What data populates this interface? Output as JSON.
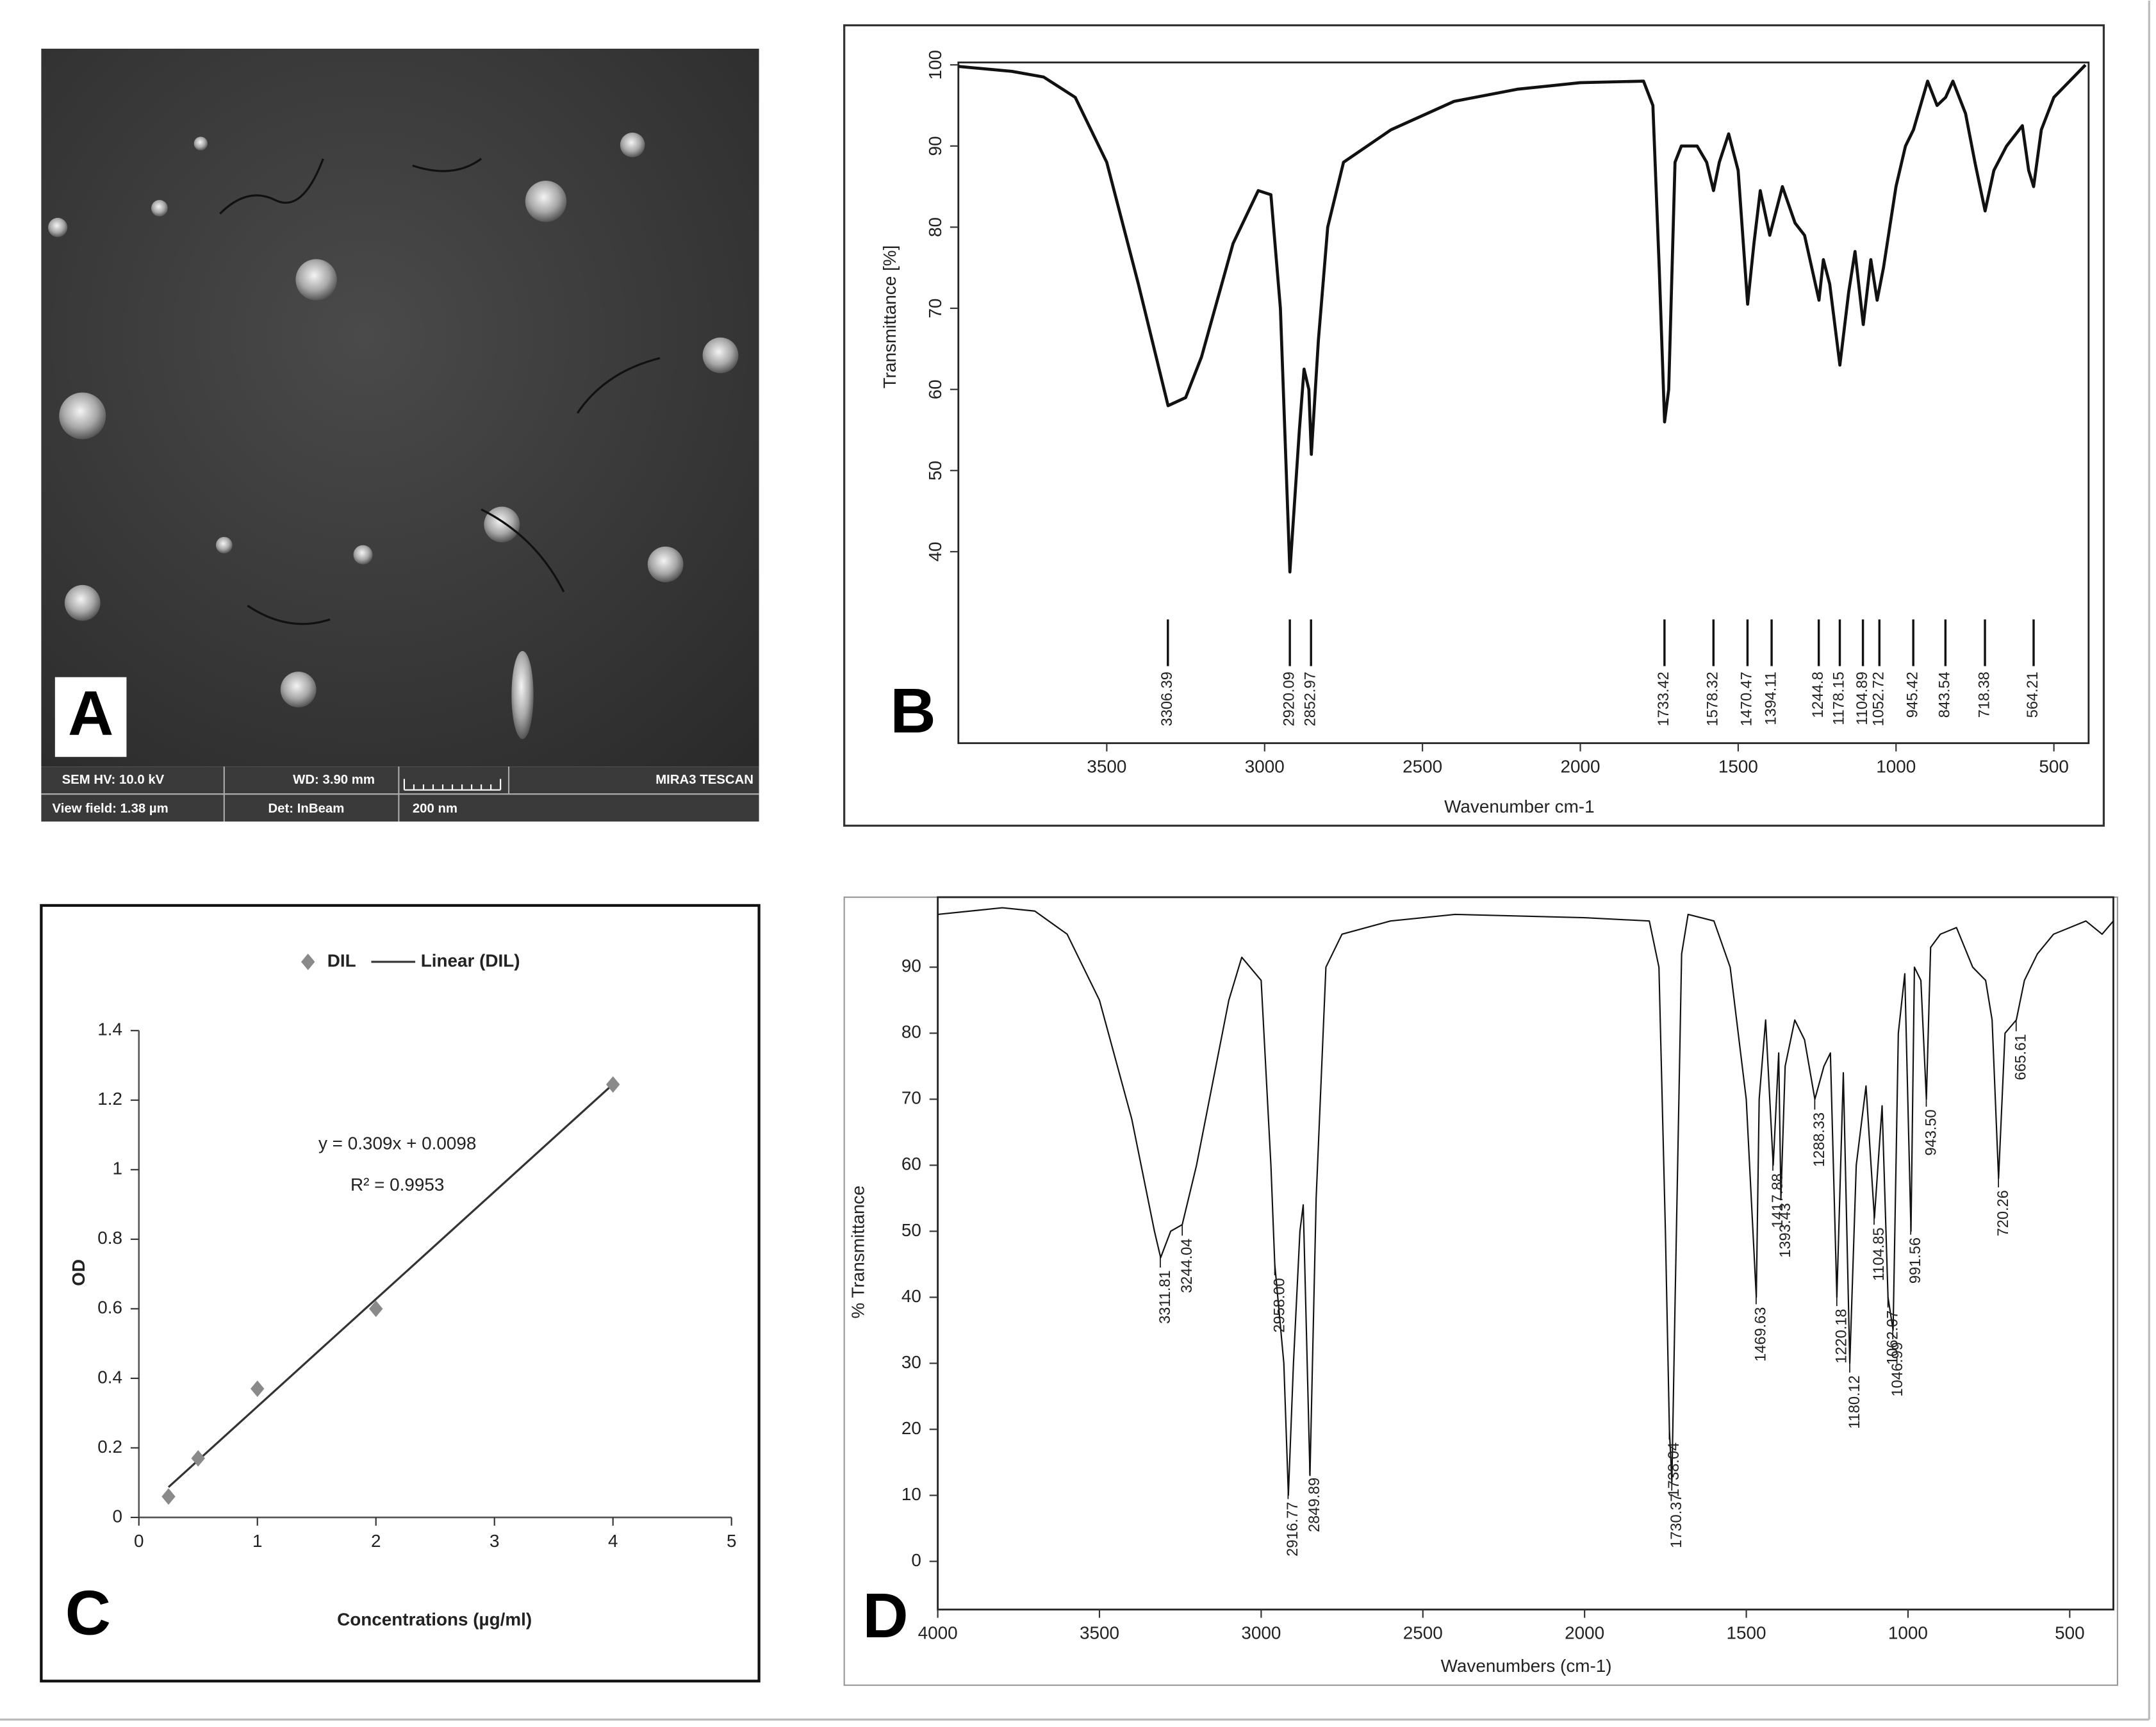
{
  "panels": [
    "A",
    "B",
    "C",
    "D"
  ],
  "sem": {
    "hv": "SEM HV: 10.0 kV",
    "wd": "WD: 3.90 mm",
    "brand": "MIRA3 TESCAN",
    "view": "View field: 1.38 µm",
    "det": "Det: InBeam",
    "scale": "200 nm"
  },
  "chart_data": [
    {
      "type": "line",
      "xlabel": "Wavenumber cm-1",
      "ylabel": "Transmittance [%]",
      "color": "#111111",
      "xlim": [
        3970,
        390
      ],
      "ylim": [
        16.4,
        100.3
      ],
      "xticks": [
        3500,
        3000,
        2500,
        2000,
        1500,
        1000,
        500
      ],
      "yticks": [
        40,
        50,
        60,
        70,
        80,
        90,
        100
      ],
      "x": [
        3970,
        3800,
        3700,
        3600,
        3500,
        3400,
        3306,
        3250,
        3200,
        3100,
        3020,
        2980,
        2950,
        2920,
        2890,
        2875,
        2860,
        2852,
        2830,
        2800,
        2750,
        2600,
        2400,
        2200,
        2000,
        1800,
        1770,
        1750,
        1733,
        1720,
        1700,
        1680,
        1630,
        1600,
        1578,
        1560,
        1530,
        1500,
        1470,
        1450,
        1430,
        1400,
        1380,
        1360,
        1320,
        1290,
        1244,
        1230,
        1210,
        1178,
        1150,
        1130,
        1104,
        1080,
        1060,
        1040,
        1000,
        970,
        945,
        900,
        870,
        843,
        820,
        780,
        750,
        718,
        690,
        650,
        600,
        580,
        564,
        540,
        500,
        450,
        400
      ],
      "values": [
        99.8,
        99.2,
        98.5,
        96,
        88,
        73,
        58,
        59,
        64,
        78,
        84.5,
        84,
        70,
        37.5,
        55,
        62.5,
        60,
        52,
        66,
        80,
        88,
        92,
        95.5,
        97,
        97.8,
        98,
        95,
        75,
        56,
        60,
        88,
        90,
        90,
        88,
        84.5,
        88,
        91.5,
        87,
        70.5,
        78,
        84.5,
        79,
        82,
        85,
        80.5,
        79,
        71,
        76,
        73,
        63,
        72,
        77,
        68,
        76,
        71,
        75,
        85,
        90,
        92,
        98,
        95,
        96,
        98,
        94,
        88,
        82,
        87,
        90,
        92.5,
        87,
        85,
        92,
        96,
        98,
        100
      ],
      "peaks": [
        3306.39,
        2920.09,
        2852.97,
        1733.42,
        1578.32,
        1470.47,
        1394.11,
        1244.8,
        1178.15,
        1104.89,
        1052.72,
        945.42,
        843.54,
        718.38,
        564.21
      ]
    },
    {
      "type": "scatter",
      "xlabel": "Concentrations (µg/ml)",
      "ylabel": "OD",
      "name": "DIL",
      "color": "#8a8a8a",
      "xlim": [
        0,
        5
      ],
      "ylim": [
        0,
        1.4
      ],
      "xticks": [
        0,
        1,
        2,
        3,
        4,
        5
      ],
      "yticks": [
        0,
        0.2,
        0.4,
        0.6,
        0.8,
        1,
        1.2,
        1.4
      ],
      "x": [
        0.25,
        0.5,
        1,
        2,
        4
      ],
      "values": [
        0.06,
        0.17,
        0.37,
        0.6,
        1.245
      ],
      "trendline": {
        "name": "Linear (DIL)",
        "color": "#333333",
        "slope": 0.309,
        "intercept": 0.0098,
        "label": "y = 0.309x + 0.0098",
        "r2_label": "R² = 0.9953"
      }
    },
    {
      "type": "line",
      "xlabel": "Wavenumbers (cm-1)",
      "ylabel": "% Transmittance",
      "color": "#111111",
      "xlim": [
        4000,
        365
      ],
      "ylim": [
        -7.3,
        100.6
      ],
      "xticks": [
        4000,
        3500,
        3000,
        2500,
        2000,
        1500,
        1000,
        500
      ],
      "yticks": [
        0,
        10,
        20,
        30,
        40,
        50,
        60,
        70,
        80,
        90
      ],
      "x": [
        4000,
        3800,
        3700,
        3600,
        3500,
        3400,
        3330,
        3311,
        3280,
        3244,
        3200,
        3100,
        3060,
        3000,
        2970,
        2958,
        2930,
        2916,
        2900,
        2880,
        2870,
        2860,
        2849,
        2830,
        2800,
        2750,
        2600,
        2400,
        2000,
        1800,
        1770,
        1750,
        1738,
        1730,
        1720,
        1700,
        1680,
        1600,
        1550,
        1500,
        1469,
        1460,
        1440,
        1417,
        1400,
        1393,
        1380,
        1350,
        1320,
        1288,
        1260,
        1240,
        1220,
        1200,
        1180,
        1160,
        1130,
        1104,
        1080,
        1062,
        1046,
        1030,
        1010,
        991,
        980,
        960,
        943,
        930,
        900,
        850,
        800,
        760,
        740,
        720,
        700,
        665,
        640,
        600,
        550,
        450,
        400,
        365
      ],
      "values": [
        98,
        99,
        98.5,
        95,
        85,
        67,
        50,
        46,
        50,
        51,
        60,
        85,
        91.5,
        88,
        60,
        45,
        30,
        10,
        30,
        50,
        54,
        35,
        13,
        55,
        90,
        95,
        97,
        98,
        97.5,
        97,
        90,
        50,
        20,
        12,
        40,
        92,
        98,
        97,
        90,
        70,
        40,
        70,
        82,
        60,
        77,
        55,
        75,
        82,
        79,
        70,
        75,
        77,
        40,
        74,
        30,
        60,
        72,
        52,
        69,
        40,
        35,
        80,
        89,
        50,
        90,
        88,
        70,
        93,
        95,
        96,
        90,
        88,
        82,
        58,
        80,
        82,
        88,
        92,
        95,
        97,
        95,
        97
      ],
      "peaks": [
        3311.81,
        3244.04,
        2958.0,
        2916.77,
        2849.89,
        1738.04,
        1730.37,
        1469.63,
        1417.88,
        1393.43,
        1288.33,
        1220.18,
        1180.12,
        1104.85,
        1062.07,
        1046.99,
        991.56,
        943.5,
        720.26,
        665.61
      ],
      "peak_labels": [
        "3311.81",
        "3244.04",
        "2958.00",
        "2916.77",
        "2849.89",
        "1738.04",
        "1730.37",
        "1469.63",
        "1417.88",
        "1393.43",
        "1288.33",
        "1220.18",
        "1180.12",
        "1104.85",
        "1062.07",
        "1046.99",
        "991.56",
        "943.50",
        "720.26",
        "665.61"
      ]
    }
  ]
}
